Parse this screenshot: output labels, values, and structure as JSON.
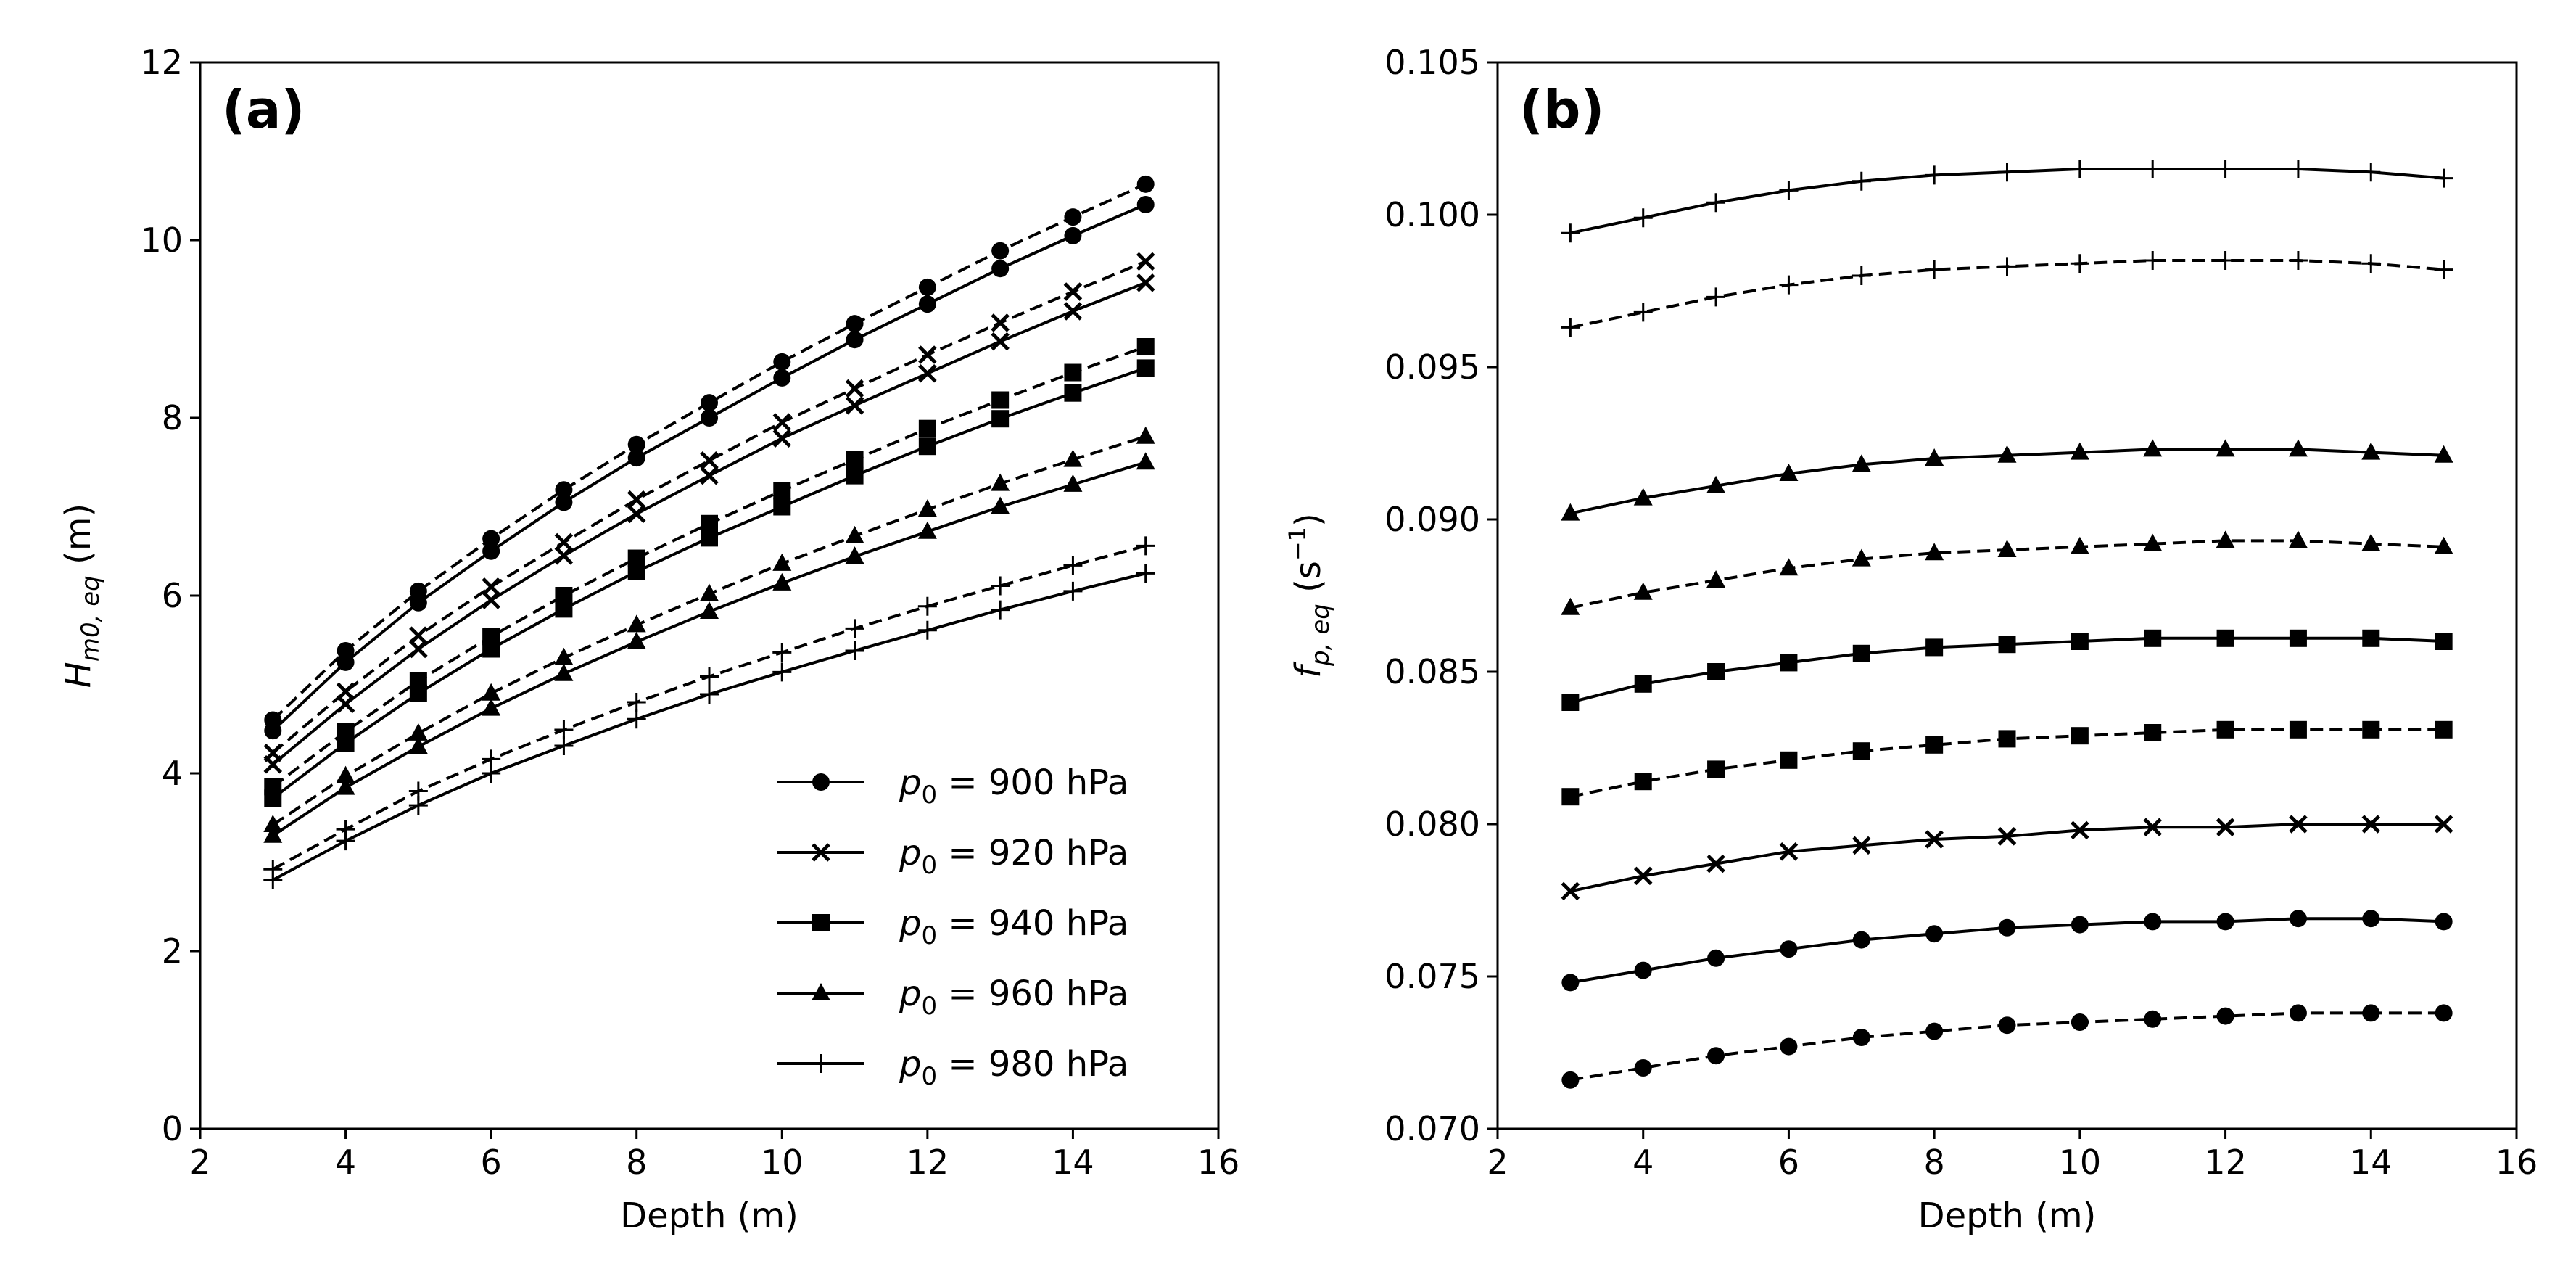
{
  "chart_data": [
    {
      "type": "line",
      "panel_label": "(a)",
      "xlabel": "Depth (m)",
      "ylabel_main": "H",
      "ylabel_sub": "m0, eq",
      "ylabel_unit": " (m)",
      "xlim": [
        2,
        16
      ],
      "ylim": [
        0,
        12
      ],
      "xticks": [
        2,
        4,
        6,
        8,
        10,
        12,
        14,
        16
      ],
      "yticks": [
        0,
        2,
        4,
        6,
        8,
        10,
        12
      ],
      "ytick_labels": [
        "0",
        "2",
        "4",
        "6",
        "8",
        "10",
        "12"
      ],
      "x": [
        3,
        4,
        5,
        6,
        7,
        8,
        9,
        10,
        11,
        12,
        13,
        14,
        15
      ],
      "legend": {
        "position": "lower-right",
        "entries": [
          {
            "var": "p",
            "sub": "0",
            "text": " = 900 hPa",
            "marker": "circle"
          },
          {
            "var": "p",
            "sub": "0",
            "text": " = 920 hPa",
            "marker": "x"
          },
          {
            "var": "p",
            "sub": "0",
            "text": " = 940 hPa",
            "marker": "square"
          },
          {
            "var": "p",
            "sub": "0",
            "text": " = 960 hPa",
            "marker": "triangle"
          },
          {
            "var": "p",
            "sub": "0",
            "text": " = 980 hPa",
            "marker": "plus"
          }
        ]
      },
      "series": [
        {
          "name": "900 hPa",
          "style": "solid",
          "marker": "circle",
          "values": [
            4.48,
            5.25,
            5.92,
            6.5,
            7.05,
            7.55,
            8.0,
            8.45,
            8.88,
            9.28,
            9.68,
            10.05,
            10.4
          ]
        },
        {
          "name": "900 hPa",
          "style": "dashed",
          "marker": "circle",
          "values": [
            4.6,
            5.38,
            6.05,
            6.64,
            7.19,
            7.7,
            8.17,
            8.63,
            9.06,
            9.47,
            9.88,
            10.26,
            10.63
          ]
        },
        {
          "name": "920 hPa",
          "style": "solid",
          "marker": "x",
          "values": [
            4.1,
            4.78,
            5.4,
            5.95,
            6.45,
            6.92,
            7.35,
            7.77,
            8.14,
            8.5,
            8.86,
            9.2,
            9.52
          ]
        },
        {
          "name": "920 hPa",
          "style": "dashed",
          "marker": "x",
          "values": [
            4.23,
            4.92,
            5.55,
            6.1,
            6.6,
            7.08,
            7.52,
            7.95,
            8.33,
            8.71,
            9.07,
            9.42,
            9.76
          ]
        },
        {
          "name": "940 hPa",
          "style": "solid",
          "marker": "square",
          "values": [
            3.72,
            4.34,
            4.9,
            5.4,
            5.85,
            6.27,
            6.65,
            7.0,
            7.35,
            7.68,
            7.99,
            8.28,
            8.56
          ]
        },
        {
          "name": "940 hPa",
          "style": "dashed",
          "marker": "square",
          "values": [
            3.85,
            4.47,
            5.04,
            5.54,
            6.0,
            6.42,
            6.81,
            7.18,
            7.53,
            7.88,
            8.2,
            8.51,
            8.8
          ]
        },
        {
          "name": "960 hPa",
          "style": "solid",
          "marker": "triangle",
          "values": [
            3.3,
            3.84,
            4.3,
            4.73,
            5.12,
            5.48,
            5.82,
            6.14,
            6.44,
            6.72,
            7.0,
            7.25,
            7.5
          ]
        },
        {
          "name": "960 hPa",
          "style": "dashed",
          "marker": "triangle",
          "values": [
            3.42,
            3.97,
            4.45,
            4.9,
            5.3,
            5.67,
            6.02,
            6.36,
            6.67,
            6.97,
            7.26,
            7.53,
            7.79
          ]
        },
        {
          "name": "980 hPa",
          "style": "solid",
          "marker": "plus",
          "values": [
            2.8,
            3.24,
            3.64,
            4.0,
            4.31,
            4.61,
            4.89,
            5.14,
            5.38,
            5.61,
            5.84,
            6.05,
            6.25
          ]
        },
        {
          "name": "980 hPa",
          "style": "dashed",
          "marker": "plus",
          "values": [
            2.92,
            3.37,
            3.8,
            4.16,
            4.49,
            4.8,
            5.09,
            5.36,
            5.63,
            5.88,
            6.11,
            6.34,
            6.56
          ]
        }
      ]
    },
    {
      "type": "line",
      "panel_label": "(b)",
      "xlabel": "Depth (m)",
      "ylabel_main": "f",
      "ylabel_sub": "p, eq",
      "ylabel_unit_pre": " (s",
      "ylabel_unit_exp": "−1",
      "ylabel_unit_post": ")",
      "xlim": [
        2,
        16
      ],
      "ylim": [
        0.07,
        0.105
      ],
      "xticks": [
        2,
        4,
        6,
        8,
        10,
        12,
        14,
        16
      ],
      "yticks": [
        0.07,
        0.075,
        0.08,
        0.085,
        0.09,
        0.095,
        0.1,
        0.105
      ],
      "ytick_labels": [
        "0.070",
        "0.075",
        "0.080",
        "0.085",
        "0.090",
        "0.095",
        "0.100",
        "0.105"
      ],
      "x": [
        3,
        4,
        5,
        6,
        7,
        8,
        9,
        10,
        11,
        12,
        13,
        14,
        15
      ],
      "series": [
        {
          "name": "980 hPa",
          "style": "solid",
          "marker": "plus",
          "values": [
            0.0994,
            0.0999,
            0.1004,
            0.1008,
            0.1011,
            0.1013,
            0.1014,
            0.1015,
            0.1015,
            0.1015,
            0.1015,
            0.1014,
            0.1012
          ]
        },
        {
          "name": "980 hPa",
          "style": "dashed",
          "marker": "plus",
          "values": [
            0.0963,
            0.0968,
            0.0973,
            0.0977,
            0.098,
            0.0982,
            0.0983,
            0.0984,
            0.0985,
            0.0985,
            0.0985,
            0.0984,
            0.0982
          ]
        },
        {
          "name": "960 hPa",
          "style": "solid",
          "marker": "triangle",
          "values": [
            0.0902,
            0.0907,
            0.0911,
            0.0915,
            0.0918,
            0.092,
            0.0921,
            0.0922,
            0.0923,
            0.0923,
            0.0923,
            0.0922,
            0.0921
          ]
        },
        {
          "name": "960 hPa",
          "style": "dashed",
          "marker": "triangle",
          "values": [
            0.0871,
            0.0876,
            0.088,
            0.0884,
            0.0887,
            0.0889,
            0.089,
            0.0891,
            0.0892,
            0.0893,
            0.0893,
            0.0892,
            0.0891
          ]
        },
        {
          "name": "940 hPa",
          "style": "solid",
          "marker": "square",
          "values": [
            0.084,
            0.0846,
            0.085,
            0.0853,
            0.0856,
            0.0858,
            0.0859,
            0.086,
            0.0861,
            0.0861,
            0.0861,
            0.0861,
            0.086
          ]
        },
        {
          "name": "940 hPa",
          "style": "dashed",
          "marker": "square",
          "values": [
            0.0809,
            0.0814,
            0.0818,
            0.0821,
            0.0824,
            0.0826,
            0.0828,
            0.0829,
            0.083,
            0.0831,
            0.0831,
            0.0831,
            0.0831
          ]
        },
        {
          "name": "920 hPa",
          "style": "solid",
          "marker": "x",
          "values": [
            0.0778,
            0.0783,
            0.0787,
            0.0791,
            0.0793,
            0.0795,
            0.0796,
            0.0798,
            0.0799,
            0.0799,
            0.08,
            0.08,
            0.08
          ]
        },
        {
          "name": "900 hPa",
          "style": "solid",
          "marker": "circle",
          "values": [
            0.0748,
            0.0752,
            0.0756,
            0.0759,
            0.0762,
            0.0764,
            0.0766,
            0.0767,
            0.0768,
            0.0768,
            0.0769,
            0.0769,
            0.0768
          ]
        },
        {
          "name": "900 hPa",
          "style": "dashed",
          "marker": "circle",
          "values": [
            0.0716,
            0.072,
            0.0724,
            0.0727,
            0.073,
            0.0732,
            0.0734,
            0.0735,
            0.0736,
            0.0737,
            0.0738,
            0.0738,
            0.0738
          ]
        }
      ]
    }
  ]
}
